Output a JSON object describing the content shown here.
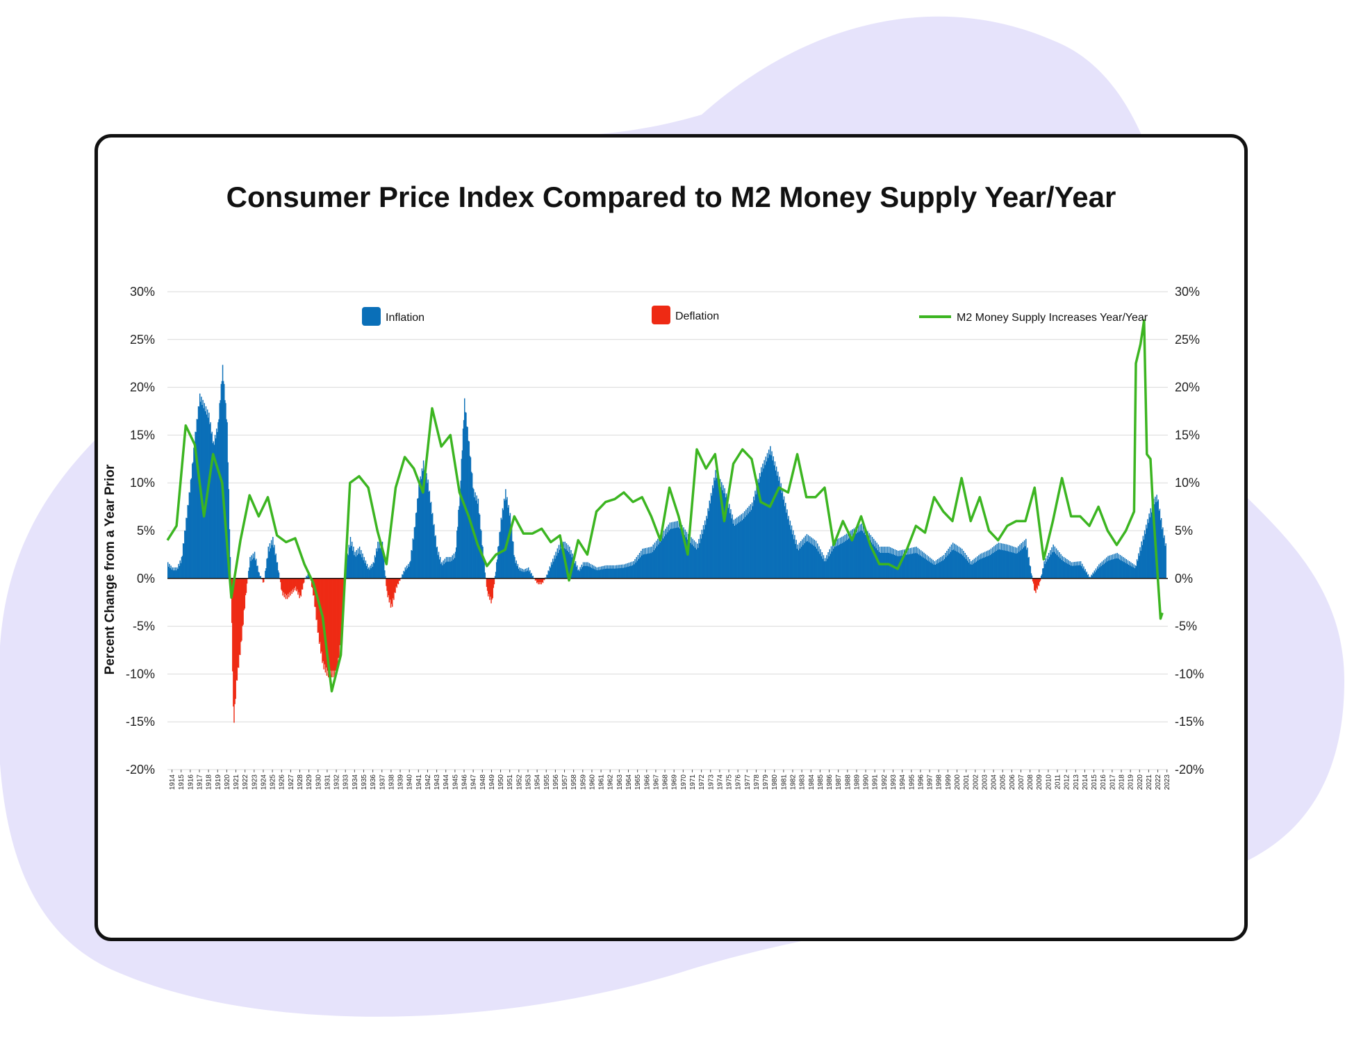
{
  "colors": {
    "inflation": "#0a6fb8",
    "deflation": "#ee2a14",
    "m2": "#3cb521",
    "background_blob": "#e6e3fb",
    "grid": "#d9d9d9"
  },
  "chart_data": {
    "type": "bar",
    "title": "Consumer Price Index Compared to M2 Money Supply Year/Year",
    "ylabel": "Percent Change from a Year Prior",
    "xlabel": "",
    "ylim": [
      -20,
      30
    ],
    "y_ticks": [
      "30%",
      "25%",
      "20%",
      "15%",
      "10%",
      "5%",
      "0%",
      "-5%",
      "-10%",
      "-15%",
      "-20%"
    ],
    "y_tick_values": [
      30,
      25,
      20,
      15,
      10,
      5,
      0,
      -5,
      -10,
      -15,
      -20
    ],
    "grid": true,
    "legend": [
      {
        "name": "Inflation",
        "kind": "bar",
        "color": "#0a6fb8"
      },
      {
        "name": "Deflation",
        "kind": "bar",
        "color": "#ee2a14"
      },
      {
        "name": "M2 Money Supply Increases Year/Year",
        "kind": "line",
        "color": "#3cb521"
      }
    ],
    "legend_placement": "top",
    "x_years": [
      1914,
      1915,
      1916,
      1917,
      1918,
      1919,
      1920,
      1921,
      1922,
      1923,
      1924,
      1925,
      1926,
      1927,
      1928,
      1929,
      1930,
      1931,
      1932,
      1933,
      1934,
      1935,
      1936,
      1937,
      1938,
      1939,
      1940,
      1941,
      1942,
      1943,
      1944,
      1945,
      1946,
      1947,
      1948,
      1949,
      1950,
      1951,
      1952,
      1953,
      1954,
      1955,
      1956,
      1957,
      1958,
      1959,
      1960,
      1961,
      1962,
      1963,
      1964,
      1965,
      1966,
      1967,
      1968,
      1969,
      1970,
      1971,
      1972,
      1973,
      1974,
      1975,
      1976,
      1977,
      1978,
      1979,
      1980,
      1981,
      1982,
      1983,
      1984,
      1985,
      1986,
      1987,
      1988,
      1989,
      1990,
      1991,
      1992,
      1993,
      1994,
      1995,
      1996,
      1997,
      1998,
      1999,
      2000,
      2001,
      2002,
      2003,
      2004,
      2005,
      2006,
      2007,
      2008,
      2009,
      2010,
      2011,
      2012,
      2013,
      2014,
      2015,
      2016,
      2017,
      2018,
      2019,
      2020,
      2021,
      2022,
      2023
    ],
    "series": [
      {
        "name": "Inflation",
        "note_points": "CPI year-over-year % change, [year, value]; negative values drawn as deflation",
        "points": [
          [
            1914.0,
            1.5
          ],
          [
            1914.5,
            1.0
          ],
          [
            1915.0,
            1.0
          ],
          [
            1915.5,
            2.0
          ],
          [
            1916.0,
            6.0
          ],
          [
            1916.5,
            10.0
          ],
          [
            1917.0,
            15.0
          ],
          [
            1917.5,
            19.0
          ],
          [
            1918.0,
            18.0
          ],
          [
            1918.5,
            17.0
          ],
          [
            1919.0,
            14.0
          ],
          [
            1919.5,
            16.0
          ],
          [
            1920.0,
            22.0
          ],
          [
            1920.5,
            16.0
          ],
          [
            1921.0,
            -5.0
          ],
          [
            1921.2,
            -15.5
          ],
          [
            1921.5,
            -11.0
          ],
          [
            1922.0,
            -7.0
          ],
          [
            1922.5,
            -2.0
          ],
          [
            1923.0,
            2.0
          ],
          [
            1923.5,
            2.5
          ],
          [
            1924.0,
            0.5
          ],
          [
            1924.5,
            -0.5
          ],
          [
            1925.0,
            3.0
          ],
          [
            1925.5,
            4.0
          ],
          [
            1926.0,
            1.5
          ],
          [
            1926.5,
            -1.5
          ],
          [
            1927.0,
            -2.0
          ],
          [
            1927.5,
            -1.5
          ],
          [
            1928.0,
            -1.0
          ],
          [
            1928.5,
            -2.0
          ],
          [
            1929.0,
            0.0
          ],
          [
            1929.5,
            0.5
          ],
          [
            1930.0,
            -2.0
          ],
          [
            1930.5,
            -6.0
          ],
          [
            1931.0,
            -9.0
          ],
          [
            1931.5,
            -10.0
          ],
          [
            1932.0,
            -10.0
          ],
          [
            1932.5,
            -10.0
          ],
          [
            1933.0,
            -6.0
          ],
          [
            1933.5,
            1.5
          ],
          [
            1934.0,
            4.0
          ],
          [
            1934.5,
            2.5
          ],
          [
            1935.0,
            3.0
          ],
          [
            1935.5,
            2.0
          ],
          [
            1936.0,
            1.0
          ],
          [
            1936.5,
            1.5
          ],
          [
            1937.0,
            3.5
          ],
          [
            1937.5,
            3.5
          ],
          [
            1938.0,
            -1.5
          ],
          [
            1938.5,
            -3.0
          ],
          [
            1939.0,
            -1.0
          ],
          [
            1939.5,
            0.0
          ],
          [
            1940.0,
            1.0
          ],
          [
            1940.5,
            1.5
          ],
          [
            1941.0,
            5.0
          ],
          [
            1941.5,
            9.5
          ],
          [
            1942.0,
            12.0
          ],
          [
            1942.5,
            10.0
          ],
          [
            1943.0,
            6.5
          ],
          [
            1943.5,
            3.0
          ],
          [
            1944.0,
            1.5
          ],
          [
            1944.5,
            2.0
          ],
          [
            1945.0,
            2.0
          ],
          [
            1945.5,
            2.5
          ],
          [
            1946.0,
            9.0
          ],
          [
            1946.5,
            18.5
          ],
          [
            1947.0,
            14.0
          ],
          [
            1947.5,
            9.0
          ],
          [
            1948.0,
            8.0
          ],
          [
            1948.5,
            3.0
          ],
          [
            1949.0,
            -1.5
          ],
          [
            1949.5,
            -2.5
          ],
          [
            1950.0,
            1.5
          ],
          [
            1950.5,
            6.0
          ],
          [
            1951.0,
            9.0
          ],
          [
            1951.5,
            6.5
          ],
          [
            1952.0,
            2.0
          ],
          [
            1952.5,
            1.0
          ],
          [
            1953.0,
            0.8
          ],
          [
            1953.5,
            1.0
          ],
          [
            1954.0,
            0.2
          ],
          [
            1954.5,
            -0.5
          ],
          [
            1955.0,
            -0.5
          ],
          [
            1955.5,
            0.3
          ],
          [
            1956.0,
            1.5
          ],
          [
            1956.5,
            2.5
          ],
          [
            1957.0,
            3.5
          ],
          [
            1957.5,
            3.5
          ],
          [
            1958.0,
            3.0
          ],
          [
            1958.5,
            2.0
          ],
          [
            1959.0,
            0.8
          ],
          [
            1959.5,
            1.5
          ],
          [
            1960.0,
            1.5
          ],
          [
            1961.0,
            1.0
          ],
          [
            1962.0,
            1.2
          ],
          [
            1963.0,
            1.2
          ],
          [
            1964.0,
            1.3
          ],
          [
            1965.0,
            1.6
          ],
          [
            1966.0,
            2.8
          ],
          [
            1967.0,
            3.0
          ],
          [
            1968.0,
            4.2
          ],
          [
            1969.0,
            5.5
          ],
          [
            1970.0,
            5.7
          ],
          [
            1971.0,
            4.3
          ],
          [
            1972.0,
            3.3
          ],
          [
            1973.0,
            6.2
          ],
          [
            1974.0,
            11.0
          ],
          [
            1975.0,
            9.1
          ],
          [
            1976.0,
            5.8
          ],
          [
            1977.0,
            6.5
          ],
          [
            1978.0,
            7.6
          ],
          [
            1979.0,
            11.3
          ],
          [
            1980.0,
            13.5
          ],
          [
            1981.0,
            10.3
          ],
          [
            1982.0,
            6.2
          ],
          [
            1983.0,
            3.2
          ],
          [
            1984.0,
            4.3
          ],
          [
            1985.0,
            3.6
          ],
          [
            1986.0,
            1.9
          ],
          [
            1987.0,
            3.6
          ],
          [
            1988.0,
            4.1
          ],
          [
            1989.0,
            4.8
          ],
          [
            1990.0,
            5.4
          ],
          [
            1991.0,
            4.2
          ],
          [
            1992.0,
            3.0
          ],
          [
            1993.0,
            3.0
          ],
          [
            1994.0,
            2.6
          ],
          [
            1995.0,
            2.8
          ],
          [
            1996.0,
            3.0
          ],
          [
            1997.0,
            2.3
          ],
          [
            1998.0,
            1.6
          ],
          [
            1999.0,
            2.2
          ],
          [
            2000.0,
            3.4
          ],
          [
            2001.0,
            2.8
          ],
          [
            2002.0,
            1.6
          ],
          [
            2003.0,
            2.3
          ],
          [
            2004.0,
            2.7
          ],
          [
            2005.0,
            3.4
          ],
          [
            2006.0,
            3.2
          ],
          [
            2007.0,
            2.9
          ],
          [
            2008.0,
            3.8
          ],
          [
            2008.8,
            -0.5
          ],
          [
            2009.0,
            -1.5
          ],
          [
            2009.5,
            -0.5
          ],
          [
            2010.0,
            1.6
          ],
          [
            2011.0,
            3.2
          ],
          [
            2012.0,
            2.1
          ],
          [
            2013.0,
            1.5
          ],
          [
            2014.0,
            1.6
          ],
          [
            2015.0,
            0.1
          ],
          [
            2016.0,
            1.3
          ],
          [
            2017.0,
            2.1
          ],
          [
            2018.0,
            2.4
          ],
          [
            2019.0,
            1.8
          ],
          [
            2020.0,
            1.2
          ],
          [
            2021.0,
            4.7
          ],
          [
            2021.6,
            6.8
          ],
          [
            2022.0,
            8.0
          ],
          [
            2022.4,
            8.5
          ],
          [
            2023.0,
            5.0
          ],
          [
            2023.4,
            3.0
          ]
        ]
      },
      {
        "name": "M2 Money Supply Increases Year/Year",
        "points": [
          [
            1914,
            4.0
          ],
          [
            1915,
            5.5
          ],
          [
            1916,
            16.0
          ],
          [
            1917,
            14.0
          ],
          [
            1918,
            6.5
          ],
          [
            1919,
            13.0
          ],
          [
            1920,
            10.0
          ],
          [
            1921,
            -2.0
          ],
          [
            1922,
            4.0
          ],
          [
            1923,
            8.7
          ],
          [
            1924,
            6.5
          ],
          [
            1925,
            8.5
          ],
          [
            1926,
            4.5
          ],
          [
            1927,
            3.8
          ],
          [
            1928,
            4.2
          ],
          [
            1929,
            1.5
          ],
          [
            1930,
            -0.5
          ],
          [
            1931,
            -4.0
          ],
          [
            1932,
            -11.8
          ],
          [
            1933,
            -8.0
          ],
          [
            1934,
            10.0
          ],
          [
            1935,
            10.7
          ],
          [
            1936,
            9.5
          ],
          [
            1937,
            5.0
          ],
          [
            1938,
            1.5
          ],
          [
            1939,
            9.5
          ],
          [
            1940,
            12.7
          ],
          [
            1941,
            11.5
          ],
          [
            1942,
            9.0
          ],
          [
            1943,
            17.8
          ],
          [
            1944,
            13.8
          ],
          [
            1945,
            15.0
          ],
          [
            1946,
            9.0
          ],
          [
            1947,
            6.5
          ],
          [
            1948,
            3.5
          ],
          [
            1949,
            1.3
          ],
          [
            1950,
            2.5
          ],
          [
            1951,
            3.0
          ],
          [
            1952,
            6.5
          ],
          [
            1953,
            4.7
          ],
          [
            1954,
            4.7
          ],
          [
            1955,
            5.2
          ],
          [
            1956,
            3.8
          ],
          [
            1957,
            4.5
          ],
          [
            1958,
            -0.2
          ],
          [
            1959,
            4.0
          ],
          [
            1960,
            2.5
          ],
          [
            1961,
            7.0
          ],
          [
            1962,
            8.0
          ],
          [
            1963,
            8.3
          ],
          [
            1964,
            9.0
          ],
          [
            1965,
            8.0
          ],
          [
            1966,
            8.5
          ],
          [
            1967,
            6.5
          ],
          [
            1968,
            4.0
          ],
          [
            1969,
            9.5
          ],
          [
            1970,
            6.5
          ],
          [
            1971,
            2.5
          ],
          [
            1972,
            13.5
          ],
          [
            1973,
            11.5
          ],
          [
            1974,
            13.0
          ],
          [
            1975,
            6.0
          ],
          [
            1976,
            12.0
          ],
          [
            1977,
            13.5
          ],
          [
            1978,
            12.5
          ],
          [
            1979,
            8.0
          ],
          [
            1980,
            7.5
          ],
          [
            1981,
            9.5
          ],
          [
            1982,
            9.0
          ],
          [
            1983,
            13.0
          ],
          [
            1984,
            8.5
          ],
          [
            1985,
            8.5
          ],
          [
            1986,
            9.5
          ],
          [
            1987,
            3.5
          ],
          [
            1988,
            6.0
          ],
          [
            1989,
            4.0
          ],
          [
            1990,
            6.5
          ],
          [
            1991,
            3.5
          ],
          [
            1992,
            1.5
          ],
          [
            1993,
            1.5
          ],
          [
            1994,
            1.0
          ],
          [
            1995,
            3.0
          ],
          [
            1996,
            5.5
          ],
          [
            1997,
            4.8
          ],
          [
            1998,
            8.5
          ],
          [
            1999,
            7.0
          ],
          [
            2000,
            6.0
          ],
          [
            2001,
            10.5
          ],
          [
            2002,
            6.0
          ],
          [
            2003,
            8.5
          ],
          [
            2004,
            5.0
          ],
          [
            2005,
            4.0
          ],
          [
            2006,
            5.5
          ],
          [
            2007,
            6.0
          ],
          [
            2008,
            6.0
          ],
          [
            2009,
            9.5
          ],
          [
            2010,
            2.0
          ],
          [
            2011,
            6.0
          ],
          [
            2012,
            10.5
          ],
          [
            2013,
            6.5
          ],
          [
            2014,
            6.5
          ],
          [
            2015,
            5.5
          ],
          [
            2016,
            7.5
          ],
          [
            2017,
            5.0
          ],
          [
            2018,
            3.5
          ],
          [
            2019,
            5.0
          ],
          [
            2019.9,
            7.0
          ],
          [
            2020.1,
            22.5
          ],
          [
            2020.6,
            24.5
          ],
          [
            2021.0,
            27.0
          ],
          [
            2021.3,
            13.0
          ],
          [
            2021.7,
            12.5
          ],
          [
            2022.0,
            7.0
          ],
          [
            2022.4,
            1.5
          ],
          [
            2022.8,
            -4.2
          ],
          [
            2023.0,
            -3.6
          ]
        ]
      }
    ]
  }
}
